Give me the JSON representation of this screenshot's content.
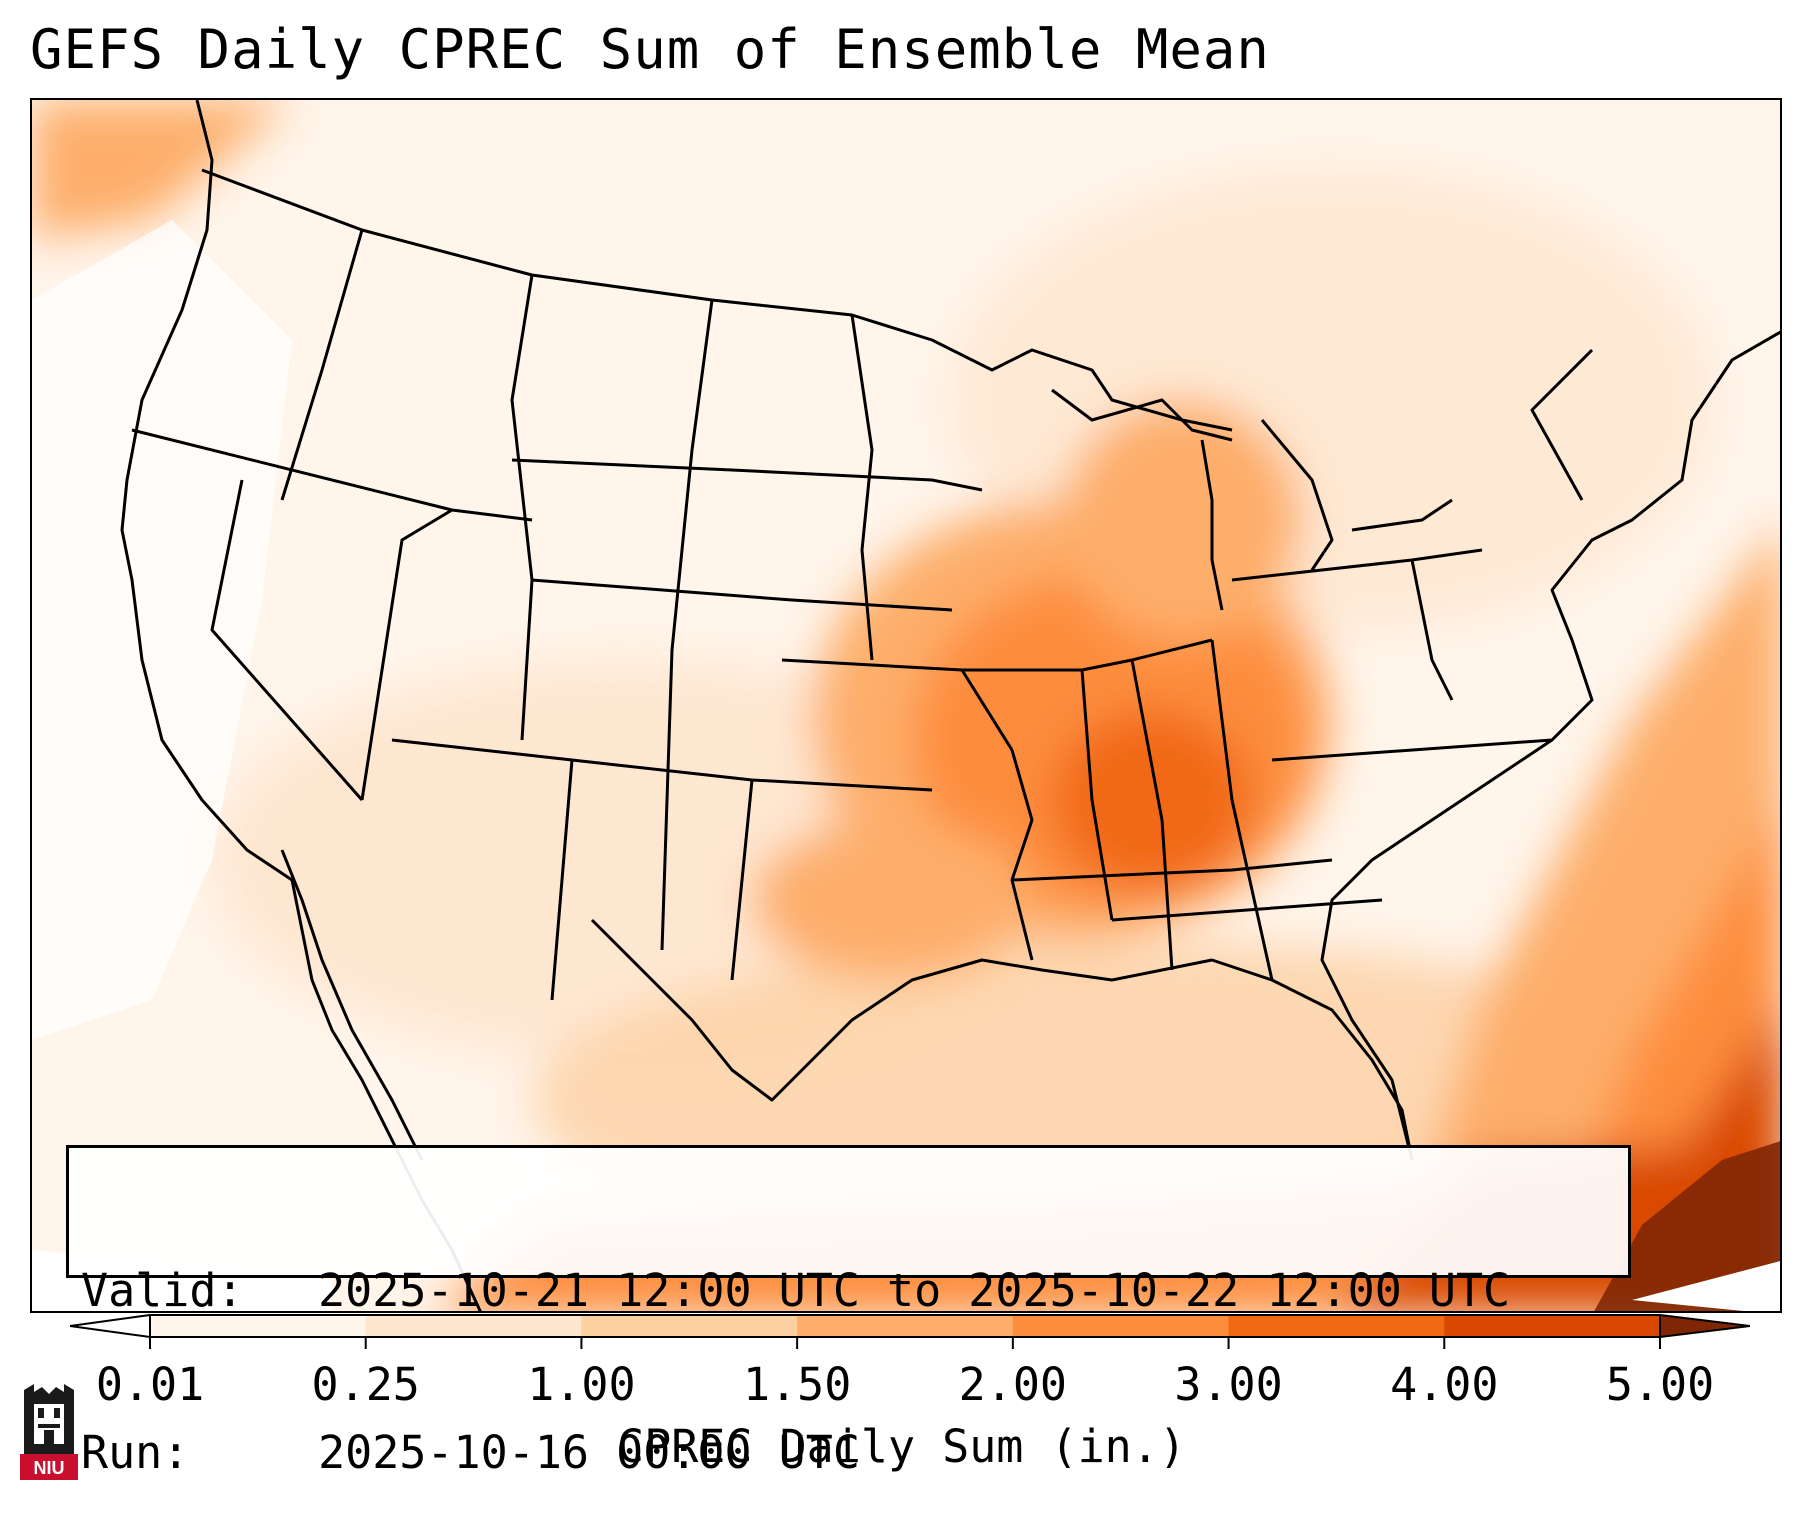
{
  "title": "GEFS Daily CPREC Sum of Ensemble Mean",
  "info": {
    "valid_label": "Valid:",
    "valid_value": "2025-10-21 12:00 UTC to 2025-10-22 12:00 UTC",
    "run_label": "Run:",
    "run_value": "2025-10-16 00:00 UTC"
  },
  "colorbar": {
    "title": "CPREC Daily Sum (in.)",
    "ticks": [
      "0.01",
      "0.25",
      "1.00",
      "1.50",
      "2.00",
      "3.00",
      "4.00",
      "5.00"
    ],
    "colors": [
      "#fff5eb",
      "#fee6ce",
      "#fdd0a2",
      "#fdae6b",
      "#fd8d3c",
      "#f16913",
      "#d94801",
      "#a63603"
    ],
    "under_color": "#ffffff",
    "over_color": "#7f2704"
  },
  "logo": {
    "text": "NIU",
    "icon": "university-tower-icon",
    "color": "#c8102e"
  },
  "map_icon": "conus-precipitation-map"
}
